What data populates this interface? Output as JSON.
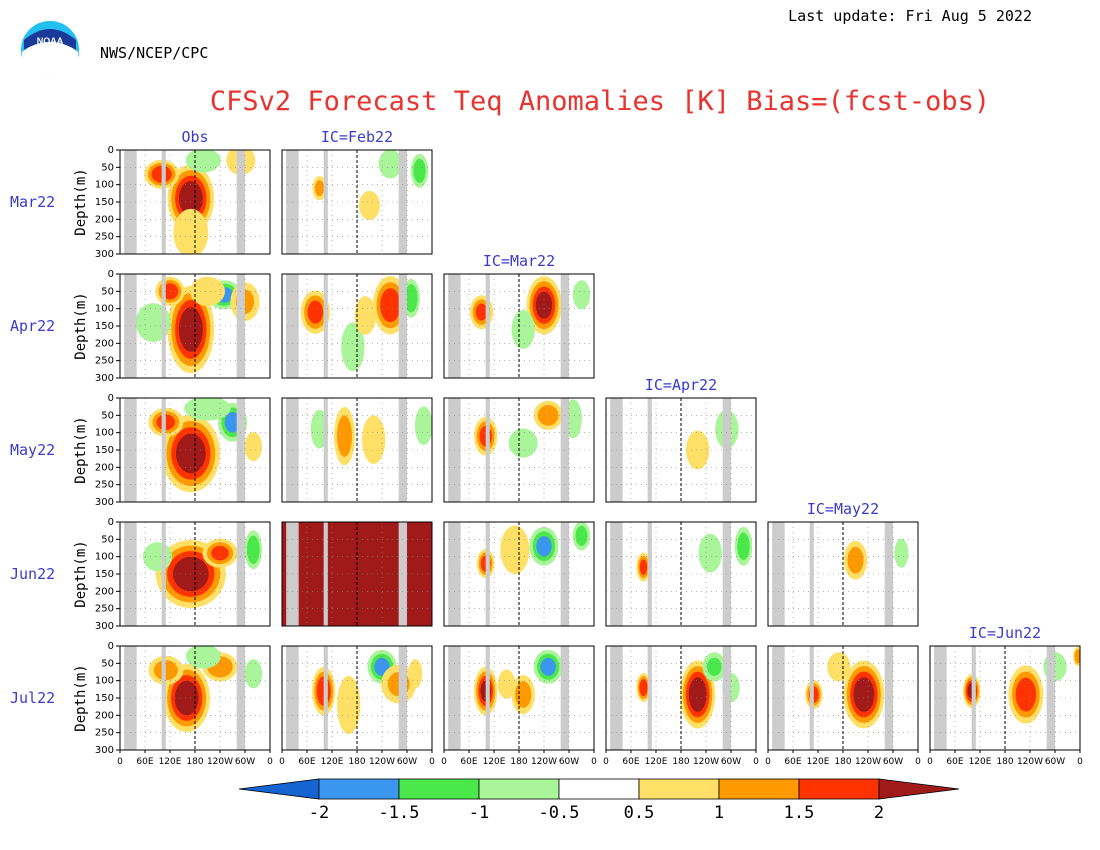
{
  "header": {
    "last_update": "Last update: Fri Aug 5 2022",
    "agency": "NWS/NCEP/CPC",
    "logo_text": "NOAA",
    "title": "CFSv2 Forecast Teq Anomalies [K] Bias=(fcst-obs)"
  },
  "colors": {
    "title": "#e8332f",
    "label_blue": "#3a3ad0",
    "land": "#cccccc",
    "deep_red": "#a01a1a",
    "red": "#ff3300",
    "orange": "#ff9900",
    "yellow": "#ffe066",
    "light_green": "#aaf59a",
    "green": "#4ae84a",
    "blue": "#3b96f0",
    "dark_blue": "#1464d2"
  },
  "chart_data": {
    "type": "heatmap",
    "description_axes": "longitude vs depth",
    "ylabel": "Depth(m)",
    "ylim": [
      300,
      0
    ],
    "yticks": [
      "0",
      "50",
      "100",
      "150",
      "200",
      "250",
      "300"
    ],
    "xlim": [
      0,
      360
    ],
    "xticks": [
      "0",
      "60E",
      "120E",
      "180",
      "120W",
      "60W",
      "0"
    ],
    "column_titles": [
      "Obs",
      "IC=Feb22",
      "IC=Mar22",
      "IC=Apr22",
      "IC=May22",
      "IC=Jun22"
    ],
    "row_labels": [
      "Mar22",
      "Apr22",
      "May22",
      "Jun22",
      "Jul22"
    ],
    "land_bands_lon": [
      [
        10,
        40
      ],
      [
        100,
        110
      ],
      [
        280,
        300
      ]
    ],
    "reference_line_lon": 180,
    "colorbar": {
      "levels": [
        "-2",
        "-1.5",
        "-1",
        "-0.5",
        "0.5",
        "1",
        "1.5",
        "2"
      ],
      "colors": [
        "#1464d2",
        "#3b96f0",
        "#4ae84a",
        "#aaf59a",
        "#ffffff",
        "#ffe066",
        "#ff9900",
        "#ff3300",
        "#a01a1a"
      ]
    },
    "panels": [
      {
        "row": 0,
        "col": 0,
        "blobs": [
          {
            "lon": 170,
            "depth": 140,
            "rl": 40,
            "rd": 70,
            "v": 2.3
          },
          {
            "lon": 100,
            "depth": 70,
            "rl": 30,
            "rd": 30,
            "v": 1.8
          },
          {
            "lon": 200,
            "depth": 30,
            "rl": 30,
            "rd": 25,
            "v": -0.8
          },
          {
            "lon": 290,
            "depth": 30,
            "rl": 25,
            "rd": 30,
            "v": 0.8
          },
          {
            "lon": 170,
            "depth": 240,
            "rl": 30,
            "rd": 50,
            "v": 0.6
          }
        ]
      },
      {
        "row": 0,
        "col": 1,
        "blobs": [
          {
            "lon": 330,
            "depth": 60,
            "rl": 15,
            "rd": 35,
            "v": -1.3
          },
          {
            "lon": 260,
            "depth": 40,
            "rl": 20,
            "rd": 30,
            "v": -0.7
          },
          {
            "lon": 90,
            "depth": 110,
            "rl": 12,
            "rd": 25,
            "v": 1.1
          },
          {
            "lon": 210,
            "depth": 160,
            "rl": 18,
            "rd": 30,
            "v": 0.6
          }
        ]
      },
      {
        "row": 1,
        "col": 0,
        "blobs": [
          {
            "lon": 170,
            "depth": 160,
            "rl": 40,
            "rd": 90,
            "v": 2.3
          },
          {
            "lon": 250,
            "depth": 60,
            "rl": 30,
            "rd": 30,
            "v": -1.6
          },
          {
            "lon": 120,
            "depth": 50,
            "rl": 25,
            "rd": 30,
            "v": 1.7
          },
          {
            "lon": 80,
            "depth": 140,
            "rl": 30,
            "rd": 40,
            "v": -0.8
          },
          {
            "lon": 210,
            "depth": 50,
            "rl": 30,
            "rd": 30,
            "v": 0.7
          },
          {
            "lon": 300,
            "depth": 80,
            "rl": 25,
            "rd": 40,
            "v": 1.0
          }
        ]
      },
      {
        "row": 1,
        "col": 1,
        "blobs": [
          {
            "lon": 260,
            "depth": 90,
            "rl": 30,
            "rd": 60,
            "v": 1.8
          },
          {
            "lon": 310,
            "depth": 70,
            "rl": 15,
            "rd": 40,
            "v": -1.4
          },
          {
            "lon": 170,
            "depth": 210,
            "rl": 20,
            "rd": 50,
            "v": -0.9
          },
          {
            "lon": 80,
            "depth": 110,
            "rl": 25,
            "rd": 45,
            "v": 1.6
          },
          {
            "lon": 200,
            "depth": 120,
            "rl": 18,
            "rd": 40,
            "v": 0.8
          }
        ]
      },
      {
        "row": 1,
        "col": 2,
        "blobs": [
          {
            "lon": 240,
            "depth": 90,
            "rl": 30,
            "rd": 60,
            "v": 2.1
          },
          {
            "lon": 90,
            "depth": 110,
            "rl": 20,
            "rd": 35,
            "v": 1.5
          },
          {
            "lon": 190,
            "depth": 160,
            "rl": 20,
            "rd": 40,
            "v": -0.9
          },
          {
            "lon": 330,
            "depth": 60,
            "rl": 15,
            "rd": 30,
            "v": -0.6
          }
        ]
      },
      {
        "row": 2,
        "col": 0,
        "blobs": [
          {
            "lon": 170,
            "depth": 160,
            "rl": 50,
            "rd": 80,
            "v": 2.3
          },
          {
            "lon": 270,
            "depth": 70,
            "rl": 25,
            "rd": 40,
            "v": -1.6
          },
          {
            "lon": 110,
            "depth": 70,
            "rl": 30,
            "rd": 30,
            "v": 1.6
          },
          {
            "lon": 210,
            "depth": 30,
            "rl": 40,
            "rd": 25,
            "v": -0.7
          },
          {
            "lon": 320,
            "depth": 140,
            "rl": 15,
            "rd": 30,
            "v": 0.7
          }
        ]
      },
      {
        "row": 2,
        "col": 1,
        "blobs": [
          {
            "lon": 150,
            "depth": 110,
            "rl": 18,
            "rd": 60,
            "v": 1.3
          },
          {
            "lon": 220,
            "depth": 120,
            "rl": 20,
            "rd": 50,
            "v": 0.9
          },
          {
            "lon": 90,
            "depth": 90,
            "rl": 15,
            "rd": 40,
            "v": -0.7
          },
          {
            "lon": 340,
            "depth": 80,
            "rl": 15,
            "rd": 40,
            "v": -0.8
          }
        ]
      },
      {
        "row": 2,
        "col": 2,
        "blobs": [
          {
            "lon": 100,
            "depth": 110,
            "rl": 20,
            "rd": 40,
            "v": 1.6
          },
          {
            "lon": 250,
            "depth": 50,
            "rl": 25,
            "rd": 30,
            "v": 1.3
          },
          {
            "lon": 310,
            "depth": 60,
            "rl": 15,
            "rd": 40,
            "v": -0.9
          },
          {
            "lon": 190,
            "depth": 130,
            "rl": 25,
            "rd": 30,
            "v": -0.6
          }
        ]
      },
      {
        "row": 2,
        "col": 3,
        "blobs": [
          {
            "lon": 220,
            "depth": 150,
            "rl": 20,
            "rd": 40,
            "v": 0.8
          },
          {
            "lon": 290,
            "depth": 90,
            "rl": 20,
            "rd": 40,
            "v": -0.6
          }
        ]
      },
      {
        "row": 3,
        "col": 0,
        "blobs": [
          {
            "lon": 170,
            "depth": 150,
            "rl": 60,
            "rd": 70,
            "v": 2.3
          },
          {
            "lon": 240,
            "depth": 90,
            "rl": 30,
            "rd": 30,
            "v": 1.5
          },
          {
            "lon": 90,
            "depth": 100,
            "rl": 25,
            "rd": 30,
            "v": -0.8
          },
          {
            "lon": 320,
            "depth": 80,
            "rl": 15,
            "rd": 40,
            "v": -1.4
          }
        ]
      },
      {
        "row": 3,
        "col": 1,
        "fill": 2.5,
        "blobs": []
      },
      {
        "row": 3,
        "col": 2,
        "blobs": [
          {
            "lon": 240,
            "depth": 70,
            "rl": 25,
            "rd": 40,
            "v": -1.6
          },
          {
            "lon": 100,
            "depth": 120,
            "rl": 15,
            "rd": 30,
            "v": 1.7
          },
          {
            "lon": 170,
            "depth": 80,
            "rl": 25,
            "rd": 50,
            "v": 0.6
          },
          {
            "lon": 330,
            "depth": 40,
            "rl": 15,
            "rd": 30,
            "v": -1.2
          }
        ]
      },
      {
        "row": 3,
        "col": 3,
        "blobs": [
          {
            "lon": 90,
            "depth": 130,
            "rl": 12,
            "rd": 30,
            "v": 1.6
          },
          {
            "lon": 330,
            "depth": 70,
            "rl": 15,
            "rd": 40,
            "v": -1.3
          },
          {
            "lon": 250,
            "depth": 90,
            "rl": 20,
            "rd": 40,
            "v": -0.7
          }
        ]
      },
      {
        "row": 3,
        "col": 4,
        "blobs": [
          {
            "lon": 210,
            "depth": 110,
            "rl": 20,
            "rd": 40,
            "v": 1.2
          },
          {
            "lon": 320,
            "depth": 90,
            "rl": 12,
            "rd": 30,
            "v": -0.7
          }
        ]
      },
      {
        "row": 4,
        "col": 0,
        "blobs": [
          {
            "lon": 160,
            "depth": 150,
            "rl": 40,
            "rd": 70,
            "v": 2.3
          },
          {
            "lon": 240,
            "depth": 60,
            "rl": 30,
            "rd": 30,
            "v": 1.4
          },
          {
            "lon": 110,
            "depth": 70,
            "rl": 30,
            "rd": 30,
            "v": 1.2
          },
          {
            "lon": 200,
            "depth": 30,
            "rl": 30,
            "rd": 25,
            "v": -0.7
          },
          {
            "lon": 320,
            "depth": 80,
            "rl": 15,
            "rd": 30,
            "v": -0.9
          }
        ]
      },
      {
        "row": 4,
        "col": 1,
        "blobs": [
          {
            "lon": 240,
            "depth": 60,
            "rl": 25,
            "rd": 35,
            "v": -1.6
          },
          {
            "lon": 100,
            "depth": 130,
            "rl": 20,
            "rd": 50,
            "v": 1.9
          },
          {
            "lon": 160,
            "depth": 170,
            "rl": 20,
            "rd": 60,
            "v": 0.9
          },
          {
            "lon": 280,
            "depth": 110,
            "rl": 30,
            "rd": 40,
            "v": 1.0
          },
          {
            "lon": 320,
            "depth": 80,
            "rl": 12,
            "rd": 30,
            "v": 0.6
          }
        ]
      },
      {
        "row": 4,
        "col": 2,
        "blobs": [
          {
            "lon": 250,
            "depth": 60,
            "rl": 25,
            "rd": 35,
            "v": -1.6
          },
          {
            "lon": 100,
            "depth": 130,
            "rl": 20,
            "rd": 50,
            "v": 2.0
          },
          {
            "lon": 190,
            "depth": 140,
            "rl": 20,
            "rd": 40,
            "v": 1.2
          },
          {
            "lon": 150,
            "depth": 110,
            "rl": 15,
            "rd": 30,
            "v": 0.6
          }
        ]
      },
      {
        "row": 4,
        "col": 3,
        "blobs": [
          {
            "lon": 220,
            "depth": 140,
            "rl": 30,
            "rd": 70,
            "v": 2.3
          },
          {
            "lon": 90,
            "depth": 120,
            "rl": 12,
            "rd": 30,
            "v": 1.8
          },
          {
            "lon": 260,
            "depth": 60,
            "rl": 20,
            "rd": 30,
            "v": -1.0
          },
          {
            "lon": 300,
            "depth": 120,
            "rl": 15,
            "rd": 30,
            "v": -0.7
          }
        ]
      },
      {
        "row": 4,
        "col": 4,
        "blobs": [
          {
            "lon": 230,
            "depth": 140,
            "rl": 35,
            "rd": 70,
            "v": 2.3
          },
          {
            "lon": 110,
            "depth": 140,
            "rl": 15,
            "rd": 30,
            "v": 1.7
          },
          {
            "lon": 170,
            "depth": 60,
            "rl": 20,
            "rd": 30,
            "v": 0.7
          }
        ]
      },
      {
        "row": 4,
        "col": 5,
        "blobs": [
          {
            "lon": 230,
            "depth": 140,
            "rl": 30,
            "rd": 60,
            "v": 1.8
          },
          {
            "lon": 100,
            "depth": 130,
            "rl": 15,
            "rd": 35,
            "v": 2.1
          },
          {
            "lon": 300,
            "depth": 60,
            "rl": 20,
            "rd": 30,
            "v": -0.7
          },
          {
            "lon": 355,
            "depth": 30,
            "rl": 8,
            "rd": 20,
            "v": 1.4
          }
        ]
      }
    ]
  }
}
